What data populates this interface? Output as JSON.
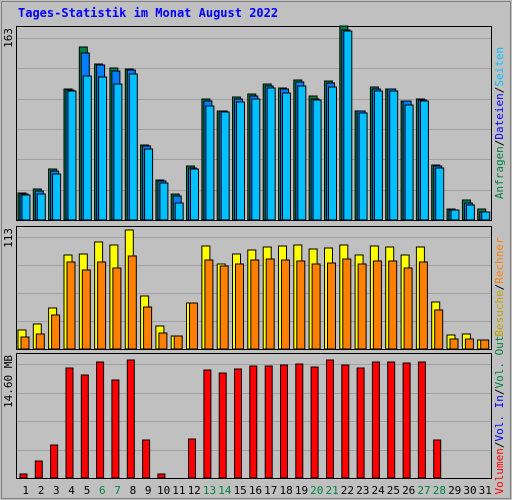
{
  "title": "Tages-Statistik im Monat August 2022",
  "colors": {
    "background": "#C0C0C0",
    "grid": "#A0A0A0",
    "anfragen": "#008040",
    "dateien": "#0080FF",
    "seiten": "#00C0FF",
    "besuche": "#FFFF00",
    "rechner": "#FF8000",
    "volumen": "#FF0000",
    "weekday_label": "#000000",
    "weekend_label": "#008040",
    "title": "#0000FF"
  },
  "legend": {
    "top": [
      {
        "text": "Anfragen",
        "color": "#008040"
      },
      {
        "text": "/",
        "color": "#000000"
      },
      {
        "text": "Dateien",
        "color": "#0000FF"
      },
      {
        "text": "/",
        "color": "#000000"
      },
      {
        "text": "Seiten",
        "color": "#00C0FF"
      }
    ],
    "middle": [
      {
        "text": "Besuche",
        "color": "#C0A000"
      },
      {
        "text": "/",
        "color": "#000000"
      },
      {
        "text": "Rechner",
        "color": "#FF8000"
      }
    ],
    "bottom": [
      {
        "text": "Volumen",
        "color": "#FF0000"
      },
      {
        "text": "/",
        "color": "#000000"
      },
      {
        "text": "Vol. In",
        "color": "#0000FF"
      },
      {
        "text": "/",
        "color": "#000000"
      },
      {
        "text": "Vol. Out",
        "color": "#008040"
      }
    ]
  },
  "chart_data": {
    "type": "bar",
    "title": "Tages-Statistik im Monat August 2022",
    "categories": [
      "1",
      "2",
      "3",
      "4",
      "5",
      "6",
      "7",
      "8",
      "9",
      "10",
      "11",
      "12",
      "13",
      "14",
      "15",
      "16",
      "17",
      "18",
      "19",
      "20",
      "21",
      "22",
      "23",
      "24",
      "25",
      "26",
      "27",
      "28",
      "29",
      "30",
      "31"
    ],
    "weekend_days": [
      "6",
      "7",
      "13",
      "14",
      "20",
      "21",
      "27",
      "28"
    ],
    "panels": [
      {
        "name": "requests",
        "max_label": "163",
        "ylim": [
          0,
          163
        ],
        "grid": true,
        "series": [
          {
            "name": "Anfragen",
            "values": [
              23,
              26,
              43,
              110,
              145,
              131,
              128,
              127,
              63,
              34,
              22,
              45,
              102,
              92,
              103,
              106,
              114,
              111,
              118,
              104,
              117,
              163,
              92,
              112,
              110,
              100,
              102,
              46,
              9,
              17,
              9
            ]
          },
          {
            "name": "Dateien",
            "values": [
              22,
              24,
              41,
              109,
              140,
              130,
              125,
              126,
              62,
              33,
              20,
              44,
              100,
              92,
              102,
              104,
              113,
              110,
              116,
              102,
              115,
              160,
              92,
              110,
              110,
              100,
              101,
              45,
              8,
              14,
              7
            ]
          },
          {
            "name": "Seiten",
            "values": [
              21,
              22,
              39,
              108,
              121,
              120,
              114,
              123,
              60,
              31,
              14,
              43,
              96,
              91,
              99,
              102,
              111,
              107,
              113,
              101,
              112,
              159,
              90,
              108,
              108,
              97,
              100,
              44,
              8,
              13,
              7
            ]
          }
        ]
      },
      {
        "name": "visits",
        "max_label": "113",
        "ylim": [
          0,
          113
        ],
        "grid": true,
        "series": [
          {
            "name": "Besuche",
            "values": [
              17,
              23,
              38,
              86,
              87,
              98,
              96,
              109,
              49,
              21,
              12,
              42,
              95,
              78,
              87,
              91,
              94,
              95,
              96,
              92,
              93,
              96,
              86,
              95,
              94,
              86,
              94,
              43,
              13,
              14,
              8
            ]
          },
          {
            "name": "Rechner",
            "values": [
              11,
              14,
              31,
              80,
              73,
              80,
              74,
              85,
              39,
              15,
              12,
              42,
              82,
              76,
              78,
              82,
              83,
              82,
              81,
              78,
              79,
              83,
              78,
              81,
              81,
              74,
              80,
              36,
              9,
              9,
              8
            ]
          }
        ]
      },
      {
        "name": "volume",
        "max_label": "14.60 MB",
        "ylim": [
          0,
          14.6
        ],
        "grid": true,
        "series": [
          {
            "name": "Volumen",
            "values": [
              0.5,
              2.0,
              3.9,
              12.8,
              12.0,
              13.6,
              11.5,
              13.8,
              4.4,
              0.5,
              0.0,
              4.6,
              12.6,
              12.3,
              12.7,
              13.1,
              13.1,
              13.2,
              13.3,
              13.0,
              13.8,
              13.2,
              12.9,
              13.6,
              13.6,
              13.4,
              13.5,
              4.4,
              0.0,
              0.0,
              0.0
            ]
          }
        ]
      }
    ]
  }
}
